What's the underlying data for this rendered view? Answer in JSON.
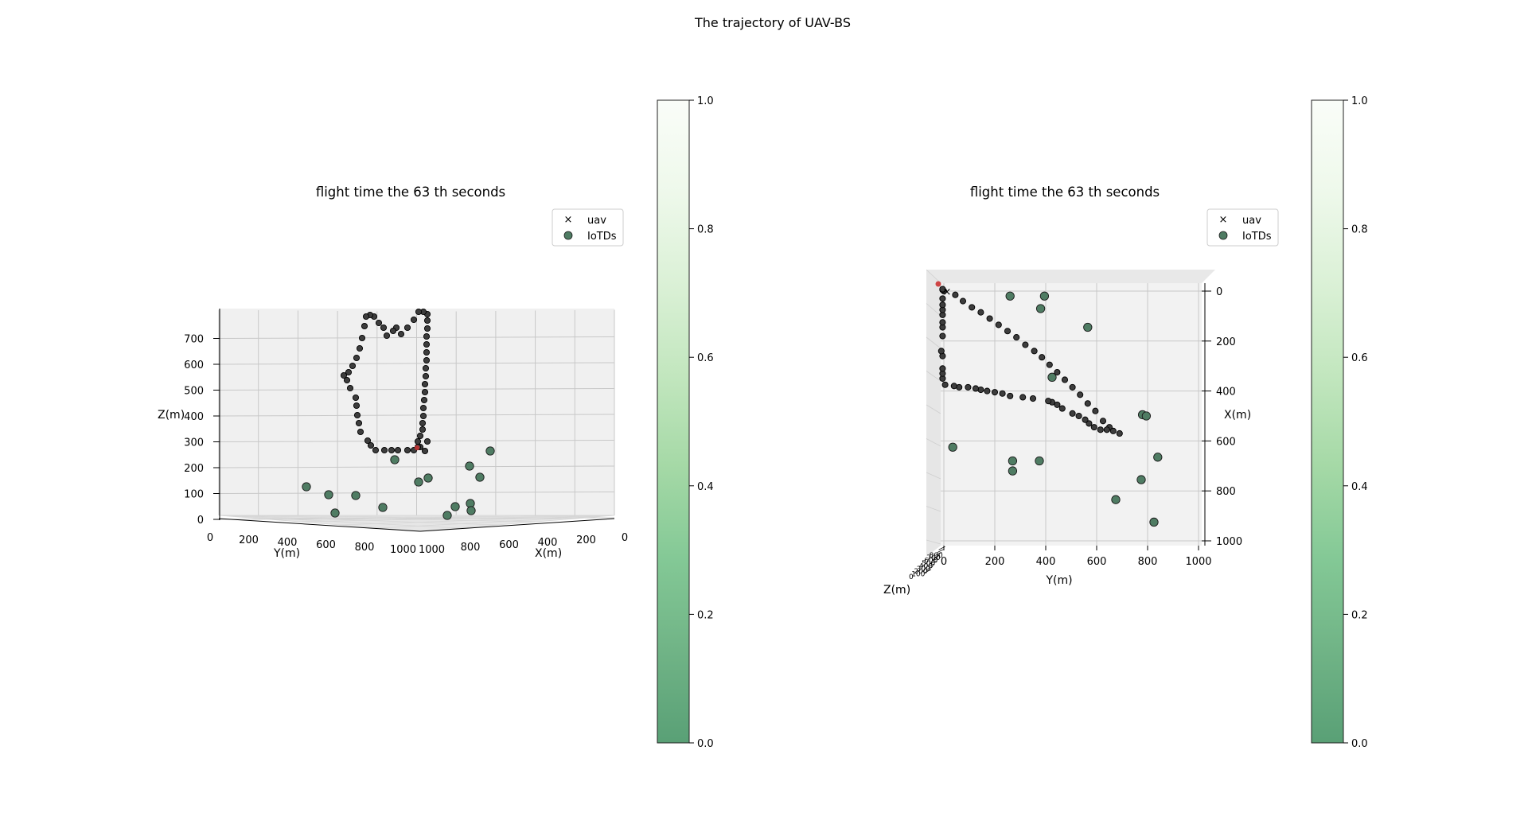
{
  "figure": {
    "suptitle": "The trajectory of UAV-BS"
  },
  "colors": {
    "iotd": "#4f7c63",
    "traj": "#3d3d3d",
    "pane": "#f2f2f2",
    "pane_side": "#ececec",
    "grid": "#c8c8c8",
    "cmap": [
      "#f7fcf5",
      "#e5f5e0",
      "#c7e9c0",
      "#a1d99b",
      "#74c476",
      "#41ab5d",
      "#238b45",
      "#006d2c"
    ],
    "cmap_alpha": 0.65
  },
  "legend": {
    "uav": "uav",
    "iotds": "IoTDs"
  },
  "colorbar": {
    "ticks": [
      "0.0",
      "0.2",
      "0.4",
      "0.6",
      "0.8",
      "1.0"
    ]
  },
  "chart_data": [
    {
      "type": "scatter",
      "title": "flight time the 63 th seconds",
      "view": "elevated-3d",
      "xlabel": "X(m)",
      "ylabel": "Y(m)",
      "zlabel": "Z(m)",
      "xticks": [
        "0",
        "200",
        "400",
        "600",
        "800",
        "1000"
      ],
      "yticks": [
        "0",
        "200",
        "400",
        "600",
        "800",
        "1000"
      ],
      "zticks": [
        "0",
        "100",
        "200",
        "300",
        "400",
        "500",
        "600",
        "700"
      ],
      "legend_loc": "upper right",
      "colorbar_range": [
        0,
        1
      ]
    },
    {
      "type": "scatter",
      "title": "flight time the 63 th seconds",
      "view": "top-down",
      "xlabel": "X(m)",
      "ylabel": "Y(m)",
      "zlabel": "Z(m)",
      "xticks": [
        "0",
        "200",
        "400",
        "600",
        "800",
        "1000"
      ],
      "yticks": [
        "0",
        "200",
        "400",
        "600",
        "800",
        "1000"
      ],
      "legend_loc": "upper right",
      "colorbar_range": [
        0,
        1
      ],
      "iotds": [
        {
          "x": 20,
          "y": 260
        },
        {
          "x": 20,
          "y": 395
        },
        {
          "x": 70,
          "y": 380
        },
        {
          "x": 145,
          "y": 565
        },
        {
          "x": 345,
          "y": 425
        },
        {
          "x": 495,
          "y": 780
        },
        {
          "x": 500,
          "y": 795
        },
        {
          "x": 625,
          "y": 35
        },
        {
          "x": 665,
          "y": 840
        },
        {
          "x": 680,
          "y": 270
        },
        {
          "x": 680,
          "y": 375
        },
        {
          "x": 720,
          "y": 270
        },
        {
          "x": 755,
          "y": 775
        },
        {
          "x": 835,
          "y": 675
        },
        {
          "x": 925,
          "y": 825
        }
      ],
      "trajectory": [
        {
          "x": 0,
          "y": 0
        },
        {
          "x": 15,
          "y": 45
        },
        {
          "x": 40,
          "y": 75
        },
        {
          "x": 65,
          "y": 110
        },
        {
          "x": 85,
          "y": 145
        },
        {
          "x": 110,
          "y": 180
        },
        {
          "x": 135,
          "y": 215
        },
        {
          "x": 160,
          "y": 250
        },
        {
          "x": 185,
          "y": 285
        },
        {
          "x": 215,
          "y": 320
        },
        {
          "x": 240,
          "y": 355
        },
        {
          "x": 265,
          "y": 385
        },
        {
          "x": 295,
          "y": 415
        },
        {
          "x": 325,
          "y": 445
        },
        {
          "x": 355,
          "y": 475
        },
        {
          "x": 385,
          "y": 505
        },
        {
          "x": 415,
          "y": 535
        },
        {
          "x": 450,
          "y": 565
        },
        {
          "x": 480,
          "y": 595
        },
        {
          "x": 520,
          "y": 625
        },
        {
          "x": 545,
          "y": 650
        },
        {
          "x": 560,
          "y": 665
        },
        {
          "x": 570,
          "y": 690
        },
        {
          "x": 555,
          "y": 640
        },
        {
          "x": 555,
          "y": 615
        },
        {
          "x": 545,
          "y": 590
        },
        {
          "x": 530,
          "y": 570
        },
        {
          "x": 515,
          "y": 555
        },
        {
          "x": 500,
          "y": 530
        },
        {
          "x": 490,
          "y": 505
        },
        {
          "x": 470,
          "y": 465
        },
        {
          "x": 455,
          "y": 445
        },
        {
          "x": 445,
          "y": 425
        },
        {
          "x": 440,
          "y": 410
        },
        {
          "x": 430,
          "y": 350
        },
        {
          "x": 425,
          "y": 310
        },
        {
          "x": 420,
          "y": 260
        },
        {
          "x": 410,
          "y": 230
        },
        {
          "x": 405,
          "y": 200
        },
        {
          "x": 400,
          "y": 170
        },
        {
          "x": 395,
          "y": 145
        },
        {
          "x": 390,
          "y": 125
        },
        {
          "x": 385,
          "y": 95
        },
        {
          "x": 385,
          "y": 60
        },
        {
          "x": 380,
          "y": 40
        },
        {
          "x": 375,
          "y": 5
        },
        {
          "x": 350,
          "y": -5
        },
        {
          "x": 330,
          "y": -5
        },
        {
          "x": 310,
          "y": -5
        },
        {
          "x": 260,
          "y": -5
        },
        {
          "x": 240,
          "y": -10
        },
        {
          "x": 180,
          "y": -5
        },
        {
          "x": 145,
          "y": -5
        },
        {
          "x": 125,
          "y": -5
        },
        {
          "x": 95,
          "y": -5
        },
        {
          "x": 75,
          "y": -5
        },
        {
          "x": 55,
          "y": -5
        },
        {
          "x": 30,
          "y": -5
        },
        {
          "x": -5,
          "y": -5
        },
        {
          "x": -8,
          "y": -5
        }
      ]
    }
  ]
}
